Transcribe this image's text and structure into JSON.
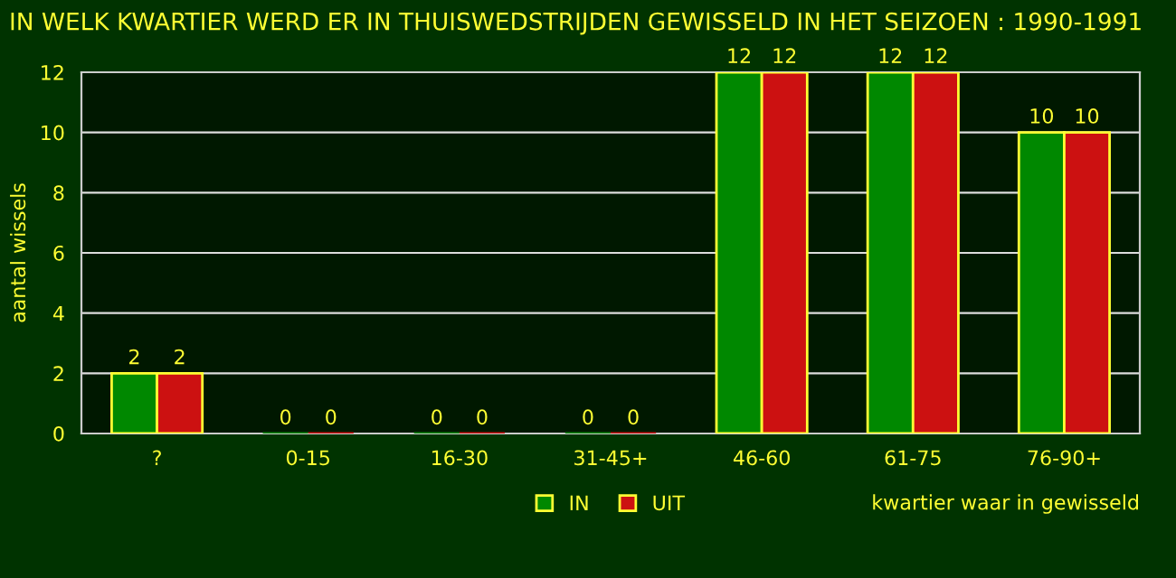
{
  "chart_data": {
    "type": "bar",
    "title": "IN WELK KWARTIER WERD ER IN THUISWEDSTRIJDEN GEWISSELD IN HET SEIZOEN : 1990-1991",
    "xlabel": "kwartier waar in gewisseld",
    "ylabel": "aantal wissels",
    "categories": [
      "?",
      "0-15",
      "16-30",
      "31-45+",
      "46-60",
      "61-75",
      "76-90+"
    ],
    "series": [
      {
        "name": "IN",
        "color": "#008800",
        "values": [
          2,
          0,
          0,
          0,
          12,
          12,
          10
        ]
      },
      {
        "name": "UIT",
        "color": "#cc1111",
        "values": [
          2,
          0,
          0,
          0,
          12,
          12,
          10
        ]
      }
    ],
    "ylim": [
      0,
      12
    ],
    "yticks": [
      0,
      2,
      4,
      6,
      8,
      10,
      12
    ],
    "grid": "y",
    "legend": "bottom",
    "data_labels": true
  }
}
